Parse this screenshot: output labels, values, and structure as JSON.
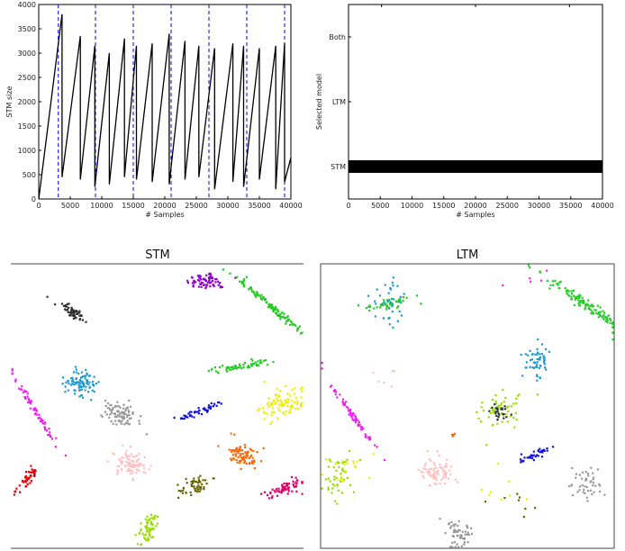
{
  "chart_data": [
    {
      "type": "line",
      "xlabel": "# Samples",
      "ylabel": "STM size",
      "xlim": [
        0,
        40000
      ],
      "ylim": [
        0,
        4000
      ],
      "xticks": [
        "0",
        "5000",
        "10000",
        "15000",
        "20000",
        "25000",
        "30000",
        "35000",
        "40000"
      ],
      "yticks": [
        "0",
        "500",
        "1000",
        "1500",
        "2000",
        "2500",
        "3000",
        "3500",
        "4000"
      ],
      "vlines_color": "#0000ff",
      "vlines_x": [
        3100,
        9000,
        15000,
        21000,
        27000,
        33000,
        39000
      ],
      "series": [
        {
          "color": "#000000",
          "x": [
            0,
            3700,
            3700,
            6600,
            6600,
            8900,
            8900,
            11200,
            11200,
            13600,
            13600,
            15500,
            15500,
            18000,
            18000,
            20700,
            20700,
            23200,
            23200,
            25400,
            25400,
            27900,
            27900,
            30800,
            30800,
            32500,
            32500,
            35000,
            35000,
            37600,
            37600,
            39000,
            39000,
            40000
          ],
          "y": [
            0,
            3800,
            450,
            3350,
            400,
            3150,
            250,
            3000,
            300,
            3300,
            450,
            3150,
            400,
            3200,
            350,
            3400,
            300,
            3250,
            400,
            3150,
            450,
            3100,
            200,
            3200,
            350,
            3150,
            250,
            3100,
            400,
            3150,
            200,
            3200,
            350,
            850
          ]
        }
      ]
    },
    {
      "type": "bar",
      "xlabel": "# Samples",
      "ylabel": "Selected model",
      "xlim": [
        0,
        40000
      ],
      "xticks": [
        "0",
        "5000",
        "10000",
        "15000",
        "20000",
        "25000",
        "30000",
        "35000",
        "40000"
      ],
      "categories": [
        "STM",
        "LTM",
        "Both"
      ],
      "selected": "STM",
      "selected_range": [
        0,
        40000
      ],
      "color": "#000000"
    },
    {
      "type": "scatter",
      "title": "STM",
      "clusters": [
        {
          "color": "#9400d3",
          "cx": 0.67,
          "cy": 0.06,
          "sx": 0.035,
          "sy": 0.015,
          "angle": 0,
          "n": 70
        },
        {
          "color": "#303030",
          "cx": 0.21,
          "cy": 0.17,
          "sx": 0.025,
          "sy": 0.01,
          "angle": 35,
          "n": 55
        },
        {
          "color": "#22cc22",
          "cx": 0.89,
          "cy": 0.15,
          "sx": 0.085,
          "sy": 0.006,
          "angle": 40,
          "n": 110
        },
        {
          "color": "#1e9ad0",
          "cx": 0.24,
          "cy": 0.42,
          "sx": 0.025,
          "sy": 0.025,
          "angle": 0,
          "n": 90
        },
        {
          "color": "#22cc22",
          "cx": 0.78,
          "cy": 0.36,
          "sx": 0.05,
          "sy": 0.006,
          "angle": -10,
          "n": 60
        },
        {
          "color": "#ee22ee",
          "cx": 0.08,
          "cy": 0.51,
          "sx": 0.07,
          "sy": 0.004,
          "angle": 58,
          "n": 70
        },
        {
          "color": "#999999",
          "cx": 0.38,
          "cy": 0.53,
          "sx": 0.035,
          "sy": 0.02,
          "angle": 25,
          "n": 90
        },
        {
          "color": "#1010e0",
          "cx": 0.64,
          "cy": 0.52,
          "sx": 0.04,
          "sy": 0.006,
          "angle": -22,
          "n": 45
        },
        {
          "color": "#eeee00",
          "cx": 0.93,
          "cy": 0.49,
          "sx": 0.035,
          "sy": 0.025,
          "angle": -30,
          "n": 90
        },
        {
          "color": "#ff6600",
          "cx": 0.79,
          "cy": 0.67,
          "sx": 0.035,
          "sy": 0.02,
          "angle": 35,
          "n": 80
        },
        {
          "color": "#ffc0c0",
          "cx": 0.41,
          "cy": 0.7,
          "sx": 0.03,
          "sy": 0.022,
          "angle": 20,
          "n": 85
        },
        {
          "color": "#e0006a",
          "cx": 0.94,
          "cy": 0.79,
          "sx": 0.035,
          "sy": 0.012,
          "angle": -20,
          "n": 65
        },
        {
          "color": "#666600",
          "cx": 0.63,
          "cy": 0.78,
          "sx": 0.03,
          "sy": 0.015,
          "angle": -20,
          "n": 55
        },
        {
          "color": "#ee0000",
          "cx": 0.06,
          "cy": 0.75,
          "sx": 0.025,
          "sy": 0.01,
          "angle": -50,
          "n": 45
        },
        {
          "color": "#99dd00",
          "cx": 0.47,
          "cy": 0.93,
          "sx": 0.018,
          "sy": 0.03,
          "angle": 15,
          "n": 60
        }
      ]
    },
    {
      "type": "scatter",
      "title": "LTM",
      "clusters": [
        {
          "color": "#22cc22",
          "cx": 0.23,
          "cy": 0.14,
          "sx": 0.05,
          "sy": 0.01,
          "angle": -10,
          "n": 45
        },
        {
          "color": "#1e9ad0",
          "cx": 0.23,
          "cy": 0.13,
          "sx": 0.03,
          "sy": 0.04,
          "angle": 0,
          "n": 35
        },
        {
          "color": "#22cc22",
          "cx": 0.9,
          "cy": 0.14,
          "sx": 0.1,
          "sy": 0.008,
          "angle": 35,
          "n": 120
        },
        {
          "color": "#1e9ad0",
          "cx": 0.74,
          "cy": 0.34,
          "sx": 0.025,
          "sy": 0.03,
          "angle": 0,
          "n": 55
        },
        {
          "color": "#ee22ee",
          "cx": 0.1,
          "cy": 0.52,
          "sx": 0.08,
          "sy": 0.004,
          "angle": 55,
          "n": 70
        },
        {
          "color": "#99dd00",
          "cx": 0.61,
          "cy": 0.52,
          "sx": 0.03,
          "sy": 0.035,
          "angle": 30,
          "n": 55
        },
        {
          "color": "#303030",
          "cx": 0.61,
          "cy": 0.52,
          "sx": 0.015,
          "sy": 0.015,
          "angle": 0,
          "n": 25
        },
        {
          "color": "#1010e0",
          "cx": 0.73,
          "cy": 0.67,
          "sx": 0.035,
          "sy": 0.007,
          "angle": -25,
          "n": 40
        },
        {
          "color": "#ffc0c0",
          "cx": 0.4,
          "cy": 0.73,
          "sx": 0.025,
          "sy": 0.025,
          "angle": 0,
          "n": 85
        },
        {
          "color": "#99dd00",
          "cx": 0.06,
          "cy": 0.75,
          "sx": 0.03,
          "sy": 0.04,
          "angle": 20,
          "n": 45
        },
        {
          "color": "#eeee00",
          "cx": 0.09,
          "cy": 0.72,
          "sx": 0.05,
          "sy": 0.04,
          "angle": 0,
          "n": 18
        },
        {
          "color": "#999999",
          "cx": 0.91,
          "cy": 0.78,
          "sx": 0.025,
          "sy": 0.03,
          "angle": 0,
          "n": 45
        },
        {
          "color": "#999999",
          "cx": 0.47,
          "cy": 0.95,
          "sx": 0.025,
          "sy": 0.025,
          "angle": 0,
          "n": 55
        },
        {
          "color": "#ff6600",
          "cx": 0.45,
          "cy": 0.6,
          "sx": 0.004,
          "sy": 0.003,
          "angle": 0,
          "n": 4
        },
        {
          "color": "#666600",
          "cx": 0.65,
          "cy": 0.82,
          "sx": 0.06,
          "sy": 0.04,
          "angle": 0,
          "n": 8
        },
        {
          "color": "#eeee00",
          "cx": 0.62,
          "cy": 0.77,
          "sx": 0.06,
          "sy": 0.06,
          "angle": 0,
          "n": 8
        },
        {
          "color": "#ee22ee",
          "cx": 0.72,
          "cy": 0.05,
          "sx": 0.05,
          "sy": 0.02,
          "angle": 0,
          "n": 5
        },
        {
          "color": "#ffc0c0",
          "cx": 0.22,
          "cy": 0.4,
          "sx": 0.03,
          "sy": 0.02,
          "angle": 0,
          "n": 6
        }
      ]
    }
  ]
}
